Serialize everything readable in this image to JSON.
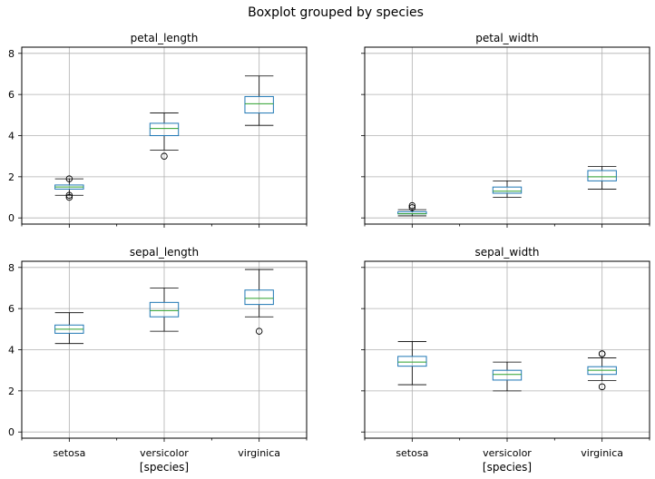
{
  "suptitle": "Boxplot grouped by species",
  "chart_data": {
    "type": "boxplot",
    "title": "Boxplot grouped by species",
    "categories": [
      "setosa",
      "versicolor",
      "virginica"
    ],
    "xlabel": "[species]",
    "ylim": [
      -0.3,
      8.3
    ],
    "yticks": [
      0,
      2,
      4,
      6,
      8
    ],
    "shared_y": true,
    "grid": true,
    "colors": {
      "box": "#1f77b4",
      "median": "#2ca02c",
      "whisker": "#000000",
      "grid": "#b0b0b0"
    },
    "panels": [
      {
        "title": "petal_length",
        "boxes": [
          {
            "category": "setosa",
            "whislo": 1.1,
            "q1": 1.4,
            "med": 1.5,
            "q3": 1.6,
            "whishi": 1.9,
            "fliers": [
              1.0,
              1.9,
              1.1
            ]
          },
          {
            "category": "versicolor",
            "whislo": 3.3,
            "q1": 4.0,
            "med": 4.35,
            "q3": 4.6,
            "whishi": 5.1,
            "fliers": [
              3.0
            ]
          },
          {
            "category": "virginica",
            "whislo": 4.5,
            "q1": 5.1,
            "med": 5.55,
            "q3": 5.9,
            "whishi": 6.9,
            "fliers": []
          }
        ]
      },
      {
        "title": "petal_width",
        "boxes": [
          {
            "category": "setosa",
            "whislo": 0.1,
            "q1": 0.2,
            "med": 0.2,
            "q3": 0.3,
            "whishi": 0.4,
            "fliers": [
              0.5,
              0.6
            ]
          },
          {
            "category": "versicolor",
            "whislo": 1.0,
            "q1": 1.2,
            "med": 1.3,
            "q3": 1.5,
            "whishi": 1.8,
            "fliers": []
          },
          {
            "category": "virginica",
            "whislo": 1.4,
            "q1": 1.8,
            "med": 2.0,
            "q3": 2.3,
            "whishi": 2.5,
            "fliers": []
          }
        ]
      },
      {
        "title": "sepal_length",
        "boxes": [
          {
            "category": "setosa",
            "whislo": 4.3,
            "q1": 4.8,
            "med": 5.0,
            "q3": 5.2,
            "whishi": 5.8,
            "fliers": []
          },
          {
            "category": "versicolor",
            "whislo": 4.9,
            "q1": 5.6,
            "med": 5.9,
            "q3": 6.3,
            "whishi": 7.0,
            "fliers": []
          },
          {
            "category": "virginica",
            "whislo": 5.6,
            "q1": 6.2,
            "med": 6.5,
            "q3": 6.9,
            "whishi": 7.9,
            "fliers": [
              4.9
            ]
          }
        ]
      },
      {
        "title": "sepal_width",
        "boxes": [
          {
            "category": "setosa",
            "whislo": 2.3,
            "q1": 3.2,
            "med": 3.4,
            "q3": 3.675,
            "whishi": 4.4,
            "fliers": []
          },
          {
            "category": "versicolor",
            "whislo": 2.0,
            "q1": 2.525,
            "med": 2.8,
            "q3": 3.0,
            "whishi": 3.4,
            "fliers": []
          },
          {
            "category": "virginica",
            "whislo": 2.5,
            "q1": 2.8,
            "med": 3.0,
            "q3": 3.175,
            "whishi": 3.6,
            "fliers": [
              3.8,
              2.2,
              3.8
            ]
          }
        ]
      }
    ]
  }
}
